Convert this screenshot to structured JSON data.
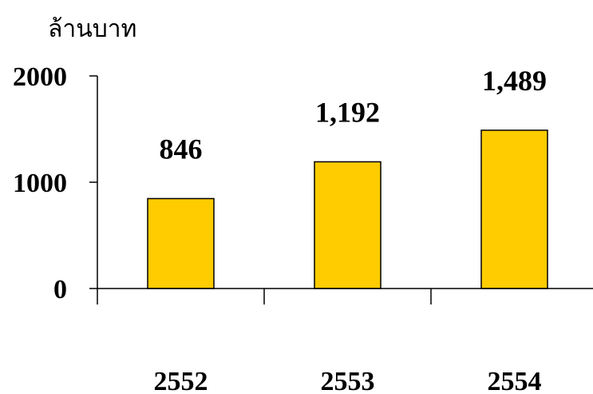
{
  "chart_data": {
    "type": "bar",
    "title": "",
    "xlabel": "",
    "ylabel": "ล้านบาท",
    "categories": [
      "2552",
      "2553",
      "2554"
    ],
    "values": [
      846,
      1192,
      1489
    ],
    "value_labels": [
      "846",
      "1,192",
      "1,489"
    ],
    "yticks": [
      0,
      1000,
      2000
    ],
    "ytick_labels": [
      "0",
      "1000",
      "2000"
    ],
    "ylim": [
      0,
      2000
    ],
    "grid": false,
    "legend": "none",
    "bar_color": "#FFCC00",
    "bar_stroke": "#000000"
  }
}
